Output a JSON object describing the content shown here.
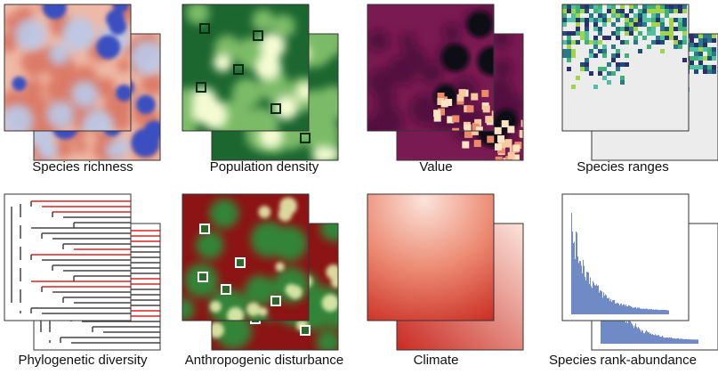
{
  "panels": [
    {
      "label": "Species richness"
    },
    {
      "label": "Population density"
    },
    {
      "label": "Value"
    },
    {
      "label": "Species ranges"
    },
    {
      "label": "Phylogenetic diversity"
    },
    {
      "label": "Anthropogenic disturbance"
    },
    {
      "label": "Climate"
    },
    {
      "label": "Species rank-abundance"
    }
  ]
}
